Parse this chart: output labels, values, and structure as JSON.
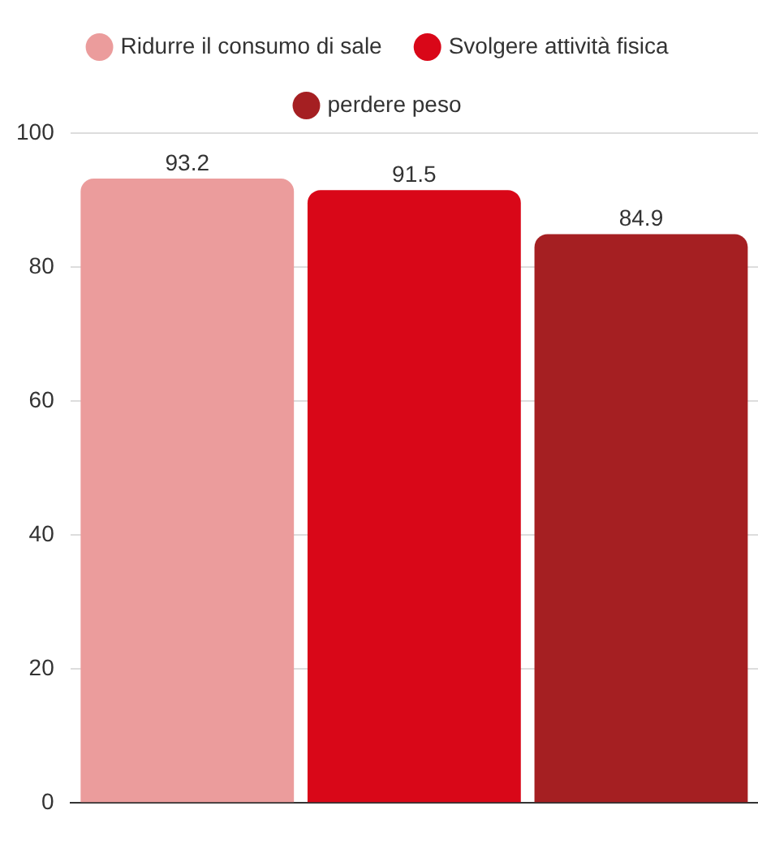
{
  "chart_data": {
    "type": "bar",
    "categories": [
      null
    ],
    "series": [
      {
        "name": "Ridurre il consumo di sale",
        "color": "#eb9c9c",
        "values": [
          93.2
        ]
      },
      {
        "name": "Svolgere attività fisica",
        "color": "#d90718",
        "values": [
          91.5
        ]
      },
      {
        "name": "perdere peso",
        "color": "#a51f22",
        "values": [
          84.9
        ]
      }
    ],
    "ylim": [
      0,
      100
    ],
    "yticks": [
      0,
      20,
      40,
      60,
      80,
      100
    ],
    "grid": "y",
    "legend": "top",
    "data_labels": true
  }
}
